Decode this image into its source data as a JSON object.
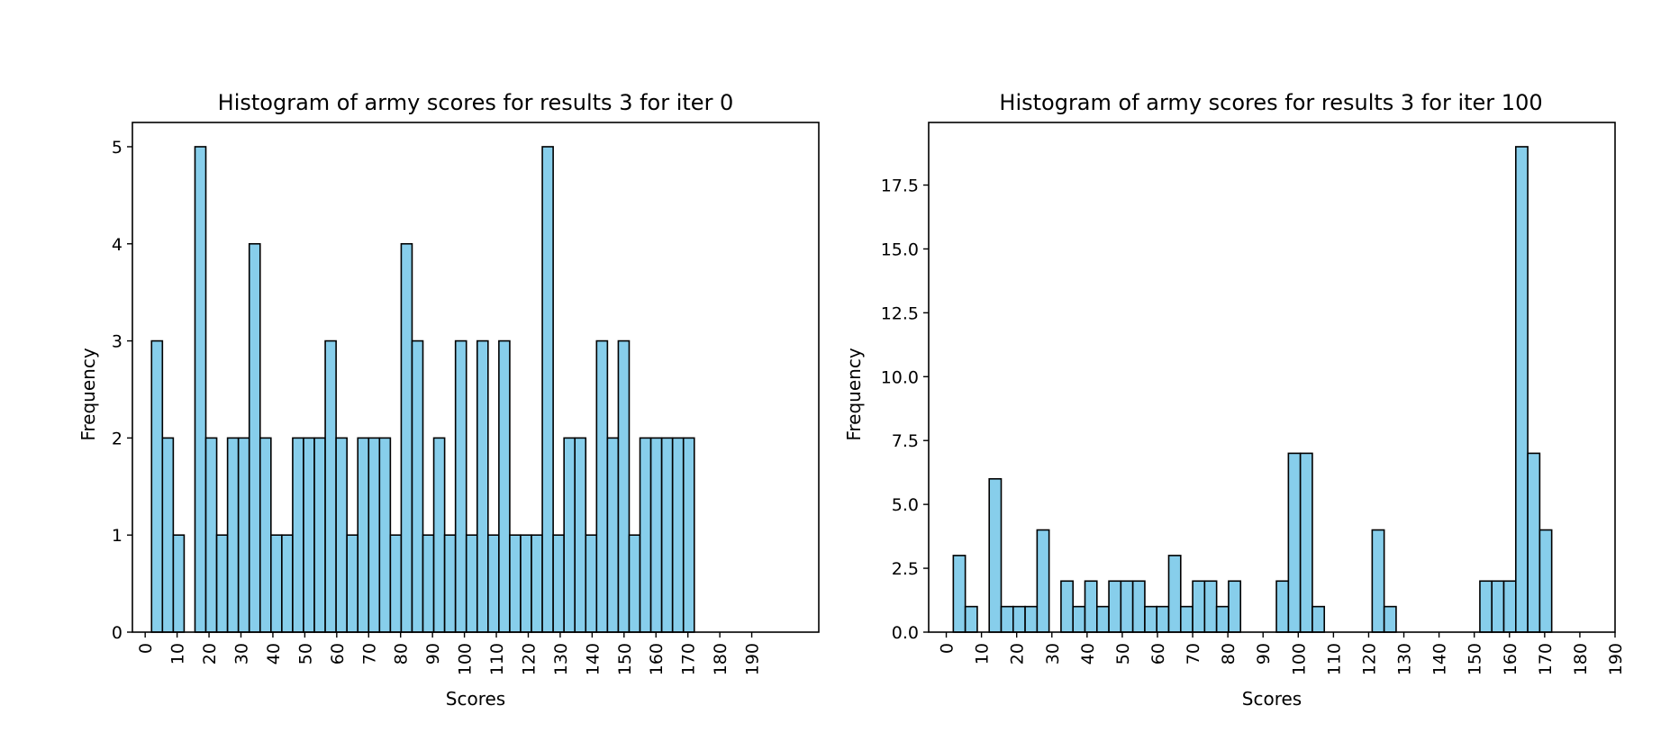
{
  "chart_data": [
    {
      "type": "bar",
      "title": "Histogram of army scores for results 3 for iter 0",
      "xlabel": "Scores",
      "ylabel": "Frequency",
      "bin_width": 3.4,
      "bin_start": 2,
      "xlim": [
        -4,
        211
      ],
      "ylim": [
        0,
        5.25
      ],
      "xticks": [
        "0",
        "10",
        "20",
        "30",
        "40",
        "50",
        "60",
        "70",
        "80",
        "90",
        "100",
        "110",
        "120",
        "130",
        "140",
        "150",
        "160",
        "170",
        "180",
        "190"
      ],
      "yticks": [
        "0",
        "1",
        "2",
        "3",
        "4",
        "5"
      ],
      "values": [
        3,
        2,
        1,
        0,
        5,
        2,
        1,
        2,
        2,
        4,
        2,
        1,
        1,
        2,
        2,
        2,
        3,
        2,
        1,
        2,
        2,
        2,
        1,
        4,
        3,
        1,
        2,
        1,
        3,
        1,
        3,
        1,
        3,
        1,
        1,
        1,
        5,
        1,
        2,
        2,
        1,
        3,
        2,
        3,
        1,
        2,
        2,
        2,
        2,
        2
      ]
    },
    {
      "type": "bar",
      "title": "Histogram of army scores for results 3 for iter 100",
      "xlabel": "Scores",
      "ylabel": "Frequency",
      "bin_width": 3.4,
      "bin_start": 2,
      "xlim": [
        -5,
        190
      ],
      "ylim": [
        0,
        19.95
      ],
      "xticks": [
        "0",
        "10",
        "20",
        "30",
        "40",
        "50",
        "60",
        "70",
        "80",
        "90",
        "100",
        "110",
        "120",
        "130",
        "140",
        "150",
        "160",
        "170",
        "180",
        "190"
      ],
      "yticks": [
        "0.0",
        "2.5",
        "5.0",
        "7.5",
        "10.0",
        "12.5",
        "15.0",
        "17.5"
      ],
      "values": [
        3,
        1,
        0,
        6,
        1,
        1,
        1,
        4,
        0,
        2,
        1,
        2,
        1,
        2,
        2,
        2,
        1,
        1,
        3,
        1,
        2,
        2,
        1,
        2,
        0,
        0,
        0,
        2,
        7,
        7,
        1,
        0,
        0,
        0,
        0,
        4,
        1,
        0,
        0,
        0,
        0,
        0,
        0,
        0,
        2,
        2,
        2,
        19,
        7,
        4
      ]
    }
  ]
}
